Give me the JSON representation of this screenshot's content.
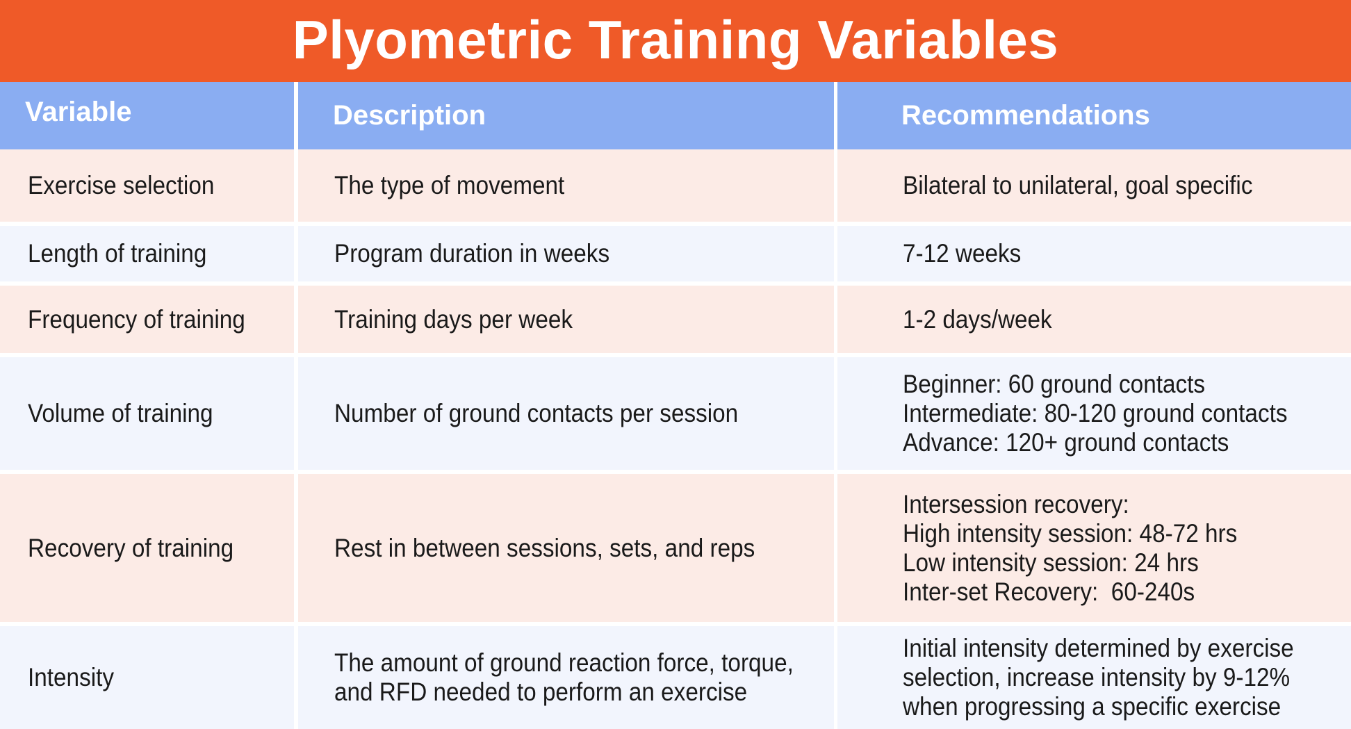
{
  "title": "Plyometric Training Variables",
  "headers": {
    "variable": "Variable",
    "description": "Description",
    "recommendations": "Recommendations"
  },
  "rows": [
    {
      "variable": "Exercise selection",
      "description": [
        "The type of movement"
      ],
      "recommendations": [
        "Bilateral to unilateral, goal specific"
      ]
    },
    {
      "variable": "Length of training",
      "description": [
        "Program duration in weeks"
      ],
      "recommendations": [
        "7-12 weeks"
      ]
    },
    {
      "variable": "Frequency of training",
      "description": [
        "Training days per week"
      ],
      "recommendations": [
        "1-2 days/week"
      ]
    },
    {
      "variable": "Volume of training",
      "description": [
        "Number of ground contacts per session"
      ],
      "recommendations": [
        "Beginner: 60 ground contacts",
        "Intermediate: 80-120 ground contacts",
        "Advance: 120+ ground contacts"
      ]
    },
    {
      "variable": "Recovery of training",
      "description": [
        "Rest in between sessions, sets, and reps"
      ],
      "recommendations": [
        "Intersession recovery:",
        "High intensity session: 48-72 hrs",
        "Low intensity session: 24 hrs",
        "Inter-set Recovery:  60-240s"
      ]
    },
    {
      "variable": "Intensity",
      "description": [
        "The amount of ground reaction force, torque,",
        "and RFD needed to perform an exercise"
      ],
      "recommendations": [
        "Initial intensity determined by exercise",
        "selection, increase intensity by 9-12%",
        "when progressing a specific exercise"
      ]
    }
  ],
  "colors": {
    "title_bg": "#ef5a28",
    "header_bg": "#8aadf2",
    "row_pink": "#fcebe6",
    "row_blue": "#f2f5fd"
  }
}
